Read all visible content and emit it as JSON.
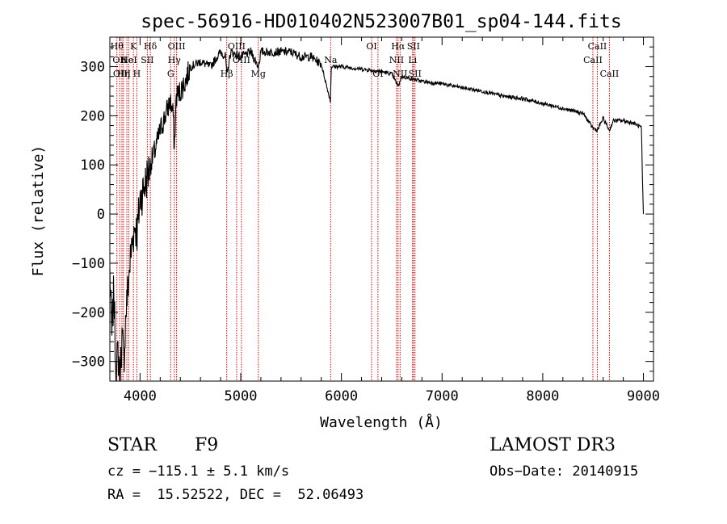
{
  "chart_data": {
    "type": "line",
    "title": "spec-56916-HD010402N523007B01_sp04-144.fits",
    "xlabel": "Wavelength (Å)",
    "ylabel": "Flux (relative)",
    "xlim": [
      3700,
      9100
    ],
    "ylim": [
      -340,
      360
    ],
    "xticks": [
      "4000",
      "5000",
      "6000",
      "7000",
      "8000",
      "9000"
    ],
    "xtick_values": [
      4000,
      5000,
      6000,
      7000,
      8000,
      9000
    ],
    "yticks": [
      "−300",
      "−200",
      "−100",
      "0",
      "100",
      "200",
      "300"
    ],
    "ytick_values": [
      -300,
      -200,
      -100,
      0,
      100,
      200,
      300
    ],
    "line_color": "#000000",
    "marker_color": "#cc0000",
    "series": [
      {
        "x": [
          3700,
          3720,
          3740,
          3760,
          3780,
          3800,
          3820,
          3840,
          3860,
          3880,
          3900,
          3920,
          3950,
          3970,
          4000,
          4050,
          4100,
          4150,
          4200,
          4250,
          4300,
          4330,
          4340,
          4360,
          4400,
          4450,
          4500,
          4600,
          4700,
          4800,
          4850,
          4861,
          4900,
          5000,
          5100,
          5175,
          5200,
          5300,
          5400,
          5500,
          5600,
          5700,
          5800,
          5890,
          5896,
          5900,
          6000,
          6200,
          6400,
          6500,
          6563,
          6600,
          6800,
          7000,
          7200,
          7400,
          7600,
          7800,
          8000,
          8200,
          8400,
          8498,
          8542,
          8600,
          8662,
          8700,
          8800,
          8900,
          8950,
          8980,
          8990,
          9000
        ],
        "y": [
          -120,
          -250,
          -150,
          -330,
          -280,
          -330,
          -250,
          -300,
          -200,
          -150,
          -100,
          -60,
          -20,
          -40,
          30,
          60,
          100,
          130,
          170,
          200,
          230,
          200,
          130,
          240,
          250,
          270,
          300,
          310,
          300,
          330,
          320,
          280,
          330,
          320,
          330,
          300,
          330,
          330,
          330,
          330,
          320,
          320,
          305,
          230,
          270,
          300,
          300,
          295,
          290,
          285,
          260,
          280,
          270,
          265,
          257,
          250,
          240,
          235,
          225,
          215,
          205,
          175,
          170,
          195,
          170,
          190,
          190,
          185,
          180,
          175,
          70,
          0
        ]
      }
    ],
    "lines": [
      {
        "x": 3770,
        "label": "Hθ",
        "row": 0
      },
      {
        "x": 3798,
        "label": "OII",
        "row": 1
      },
      {
        "x": 3820,
        "label": "OIII",
        "row": 2
      },
      {
        "x": 3835,
        "label": "Hη",
        "row": 2
      },
      {
        "x": 3869,
        "label": "Ne",
        "row": 1
      },
      {
        "x": 3889,
        "label": "HeI",
        "row": 1
      },
      {
        "x": 3934,
        "label": "K",
        "row": 0
      },
      {
        "x": 3968,
        "label": "H",
        "row": 2
      },
      {
        "x": 4072,
        "label": "SII",
        "row": 1
      },
      {
        "x": 4102,
        "label": "Hδ",
        "row": 0
      },
      {
        "x": 4304,
        "label": "G",
        "row": 2
      },
      {
        "x": 4340,
        "label": "Hγ",
        "row": 1
      },
      {
        "x": 4363,
        "label": "OIII",
        "row": 0
      },
      {
        "x": 4861,
        "label": "Hβ",
        "row": 2
      },
      {
        "x": 4959,
        "label": "OIII",
        "row": 0
      },
      {
        "x": 5007,
        "label": "OIII",
        "row": 1
      },
      {
        "x": 5175,
        "label": "Mg",
        "row": 2
      },
      {
        "x": 5893,
        "label": "Na",
        "row": 1
      },
      {
        "x": 6300,
        "label": "OI",
        "row": 0
      },
      {
        "x": 6363,
        "label": "OI",
        "row": 2
      },
      {
        "x": 6548,
        "label": "NII",
        "row": 1
      },
      {
        "x": 6563,
        "label": "Hα",
        "row": 0
      },
      {
        "x": 6583,
        "label": "NII",
        "row": 2
      },
      {
        "x": 6707,
        "label": "Li",
        "row": 1
      },
      {
        "x": 6716,
        "label": "SII",
        "row": 0
      },
      {
        "x": 6731,
        "label": "SII",
        "row": 2
      },
      {
        "x": 8498,
        "label": "CaII",
        "row": 1
      },
      {
        "x": 8542,
        "label": "CaII",
        "row": 0
      },
      {
        "x": 8662,
        "label": "CaII",
        "row": 2
      }
    ]
  },
  "info": {
    "object_type": "STAR",
    "subclass": "F9",
    "survey": "LAMOST DR3",
    "cz": "cz = −115.1 ± 5.1 km/s",
    "obs_date": "Obs−Date: 20140915",
    "coords": "RA =  15.52522, DEC =  52.06493"
  }
}
